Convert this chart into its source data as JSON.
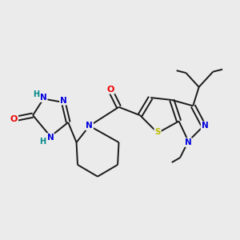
{
  "background_color": "#ebebeb",
  "bond_color": "#1a1a1a",
  "atom_colors": {
    "N": "#0000dd",
    "O": "#ee0000",
    "S": "#bbbb00",
    "H": "#008888"
  },
  "figsize": [
    3.0,
    3.0
  ],
  "dpi": 100,
  "xlim": [
    0,
    10
  ],
  "ylim": [
    0,
    10
  ]
}
